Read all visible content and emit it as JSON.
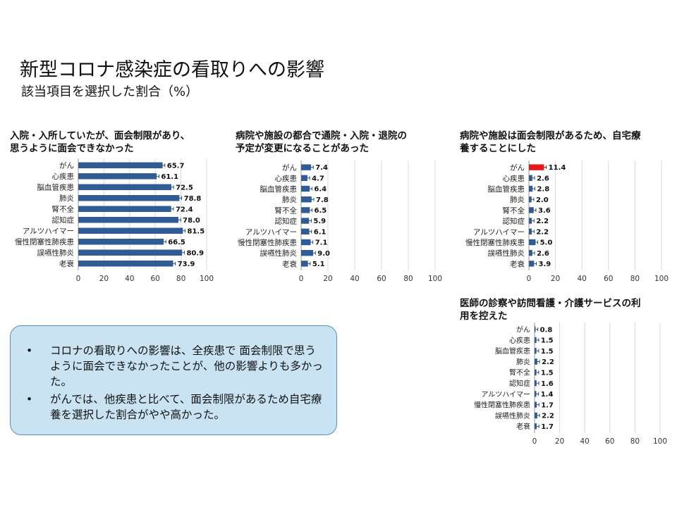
{
  "slide": {
    "title": "新型コロナ感染症の看取りへの影響",
    "subtitle": "該当項目を選択した割合（%）"
  },
  "callout": {
    "bullets": [
      "コロナの看取りへの影響は、全疾患で 面会制限で思うように面会できなかったことが、他の影響よりも多かった。",
      "がんでは、他疾患と比べて、面会制限があるため自宅療養を選択した割合がやや高かった。"
    ]
  },
  "colors": {
    "bar": "#2f5c93",
    "highlight": "#e31a1c",
    "grid": "#d9d9d9",
    "callout_bg": "#c9e3f3",
    "callout_border": "#5b8fb8"
  },
  "chart_data": [
    {
      "type": "bar",
      "orientation": "horizontal",
      "title_lines": [
        "入院・入所していたが、面会制限があり、",
        "思うように面会できなかった"
      ],
      "categories": [
        "がん",
        "心疾患",
        "脳血管疾患",
        "肺炎",
        "腎不全",
        "認知症",
        "アルツハイマー",
        "慢性閉塞性肺疾患",
        "誤嚥性肺炎",
        "老衰"
      ],
      "values": [
        65.7,
        61.1,
        72.5,
        78.8,
        72.4,
        78.0,
        81.5,
        66.5,
        80.9,
        73.9
      ],
      "value_labels": [
        "65.7",
        "61.1",
        "72.5",
        "78.8",
        "72.4",
        "78.0",
        "81.5",
        "66.5",
        "80.9",
        "73.9"
      ],
      "xlim": [
        0,
        100
      ],
      "ticks": [
        "0",
        "20",
        "40",
        "60",
        "80",
        "100"
      ],
      "error_bars": true,
      "highlight_index": -1,
      "grid": true
    },
    {
      "type": "bar",
      "orientation": "horizontal",
      "title_lines": [
        "病院や施設の都合で通院・入院・退院の",
        "予定が変更になることがあった"
      ],
      "categories": [
        "がん",
        "心疾患",
        "脳血管疾患",
        "肺炎",
        "腎不全",
        "認知症",
        "アルツハイマー",
        "慢性閉塞性肺疾患",
        "誤嚥性肺炎",
        "老衰"
      ],
      "values": [
        7.4,
        4.7,
        6.4,
        7.8,
        6.5,
        5.9,
        6.1,
        7.1,
        9.0,
        5.1
      ],
      "value_labels": [
        "7.4",
        "4.7",
        "6.4",
        "7.8",
        "6.5",
        "5.9",
        "6.1",
        "7.1",
        "9.0",
        "5.1"
      ],
      "xlim": [
        0,
        100
      ],
      "ticks": [
        "0",
        "20",
        "40",
        "60",
        "80",
        "100"
      ],
      "error_bars": true,
      "highlight_index": -1,
      "grid": true
    },
    {
      "type": "bar",
      "orientation": "horizontal",
      "title_lines": [
        "病院や施設は面会制限があるため、自宅療",
        "養することにした"
      ],
      "categories": [
        "がん",
        "心疾患",
        "脳血管疾患",
        "肺炎",
        "腎不全",
        "認知症",
        "アルツハイマー",
        "慢性閉塞性肺疾患",
        "誤嚥性肺炎",
        "老衰"
      ],
      "values": [
        11.4,
        2.6,
        2.8,
        2.0,
        3.6,
        2.2,
        2.2,
        5.0,
        2.6,
        3.9
      ],
      "value_labels": [
        "11.4",
        "2.6",
        "2.8",
        "2.0",
        "3.6",
        "2.2",
        "2.2",
        "5.0",
        "2.6",
        "3.9"
      ],
      "xlim": [
        0,
        100
      ],
      "ticks": [
        "0",
        "20",
        "40",
        "60",
        "80",
        "100"
      ],
      "error_bars": true,
      "highlight_index": 0,
      "grid": true
    },
    {
      "type": "bar",
      "orientation": "horizontal",
      "title_lines": [
        "医師の診察や訪問看護・介護サービスの利",
        "用を控えた"
      ],
      "categories": [
        "がん",
        "心疾患",
        "脳血管疾患",
        "肺炎",
        "腎不全",
        "認知症",
        "アルツハイマー",
        "慢性閉塞性肺疾患",
        "誤嚥性肺炎",
        "老衰"
      ],
      "values": [
        0.8,
        1.5,
        1.5,
        2.2,
        1.5,
        1.6,
        1.4,
        1.7,
        2.2,
        1.7
      ],
      "value_labels": [
        "0.8",
        "1.5",
        "1.5",
        "2.2",
        "1.5",
        "1.6",
        "1.4",
        "1.7",
        "2.2",
        "1.7"
      ],
      "xlim": [
        0,
        100
      ],
      "ticks": [
        "0",
        "20",
        "40",
        "60",
        "80",
        "100"
      ],
      "error_bars": true,
      "highlight_index": -1,
      "grid": true
    }
  ]
}
